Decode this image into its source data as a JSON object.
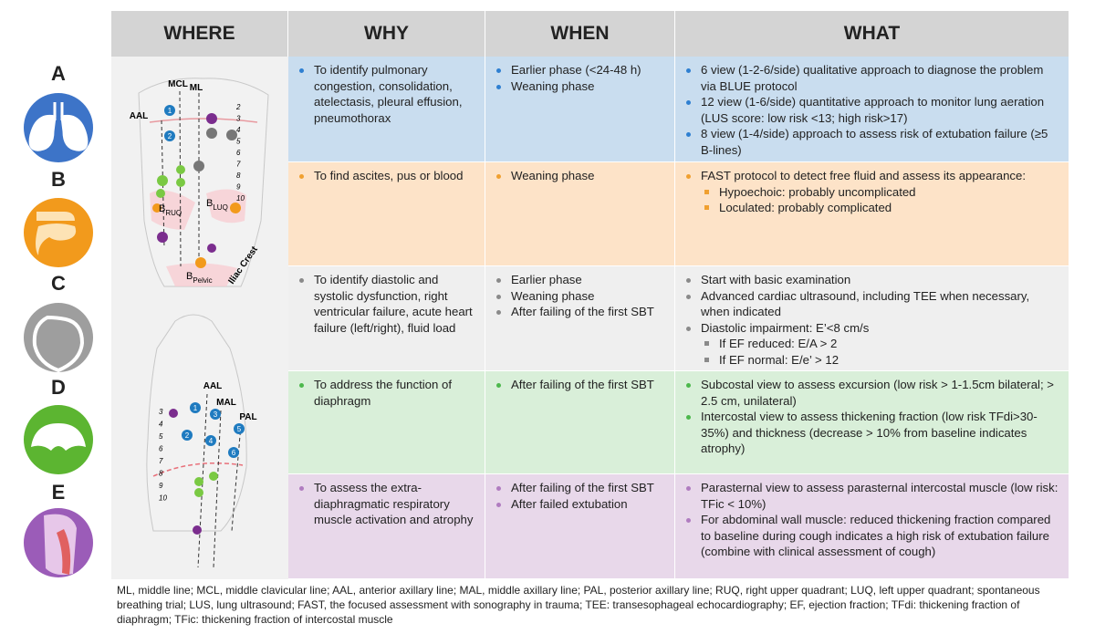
{
  "header": {
    "columns": [
      "WHERE",
      "WHY",
      "WHEN",
      "WHAT"
    ]
  },
  "side_labels": [
    "A",
    "B",
    "C",
    "D",
    "E"
  ],
  "rows": [
    {
      "why": [
        "To identify pulmonary congestion, consolidation, atelectasis, pleural effusion, pneumothorax"
      ],
      "when": [
        "Earlier phase (<24-48 h)",
        "Weaning phase"
      ],
      "what": [
        "6 view (1-2-6/side) qualitative approach to diagnose the problem via BLUE protocol",
        "12 view (1-6/side) quantitative approach to monitor lung aeration (LUS score: low risk <13; high risk>17)",
        "8 view (1-4/side) approach to assess risk of extubation failure (≥5 B-lines)"
      ]
    },
    {
      "why": [
        "To find ascites, pus or blood"
      ],
      "when": [
        "Weaning phase"
      ],
      "what": [
        {
          "text": "FAST protocol to detect free fluid and assess its appearance:",
          "sub": [
            "Hypoechoic: probably uncomplicated",
            "Loculated: probably complicated"
          ]
        }
      ]
    },
    {
      "why": [
        "To identify diastolic and systolic dysfunction, right ventricular failure, acute heart failure (left/right), fluid load"
      ],
      "when": [
        "Earlier phase",
        "Weaning phase",
        "After failing of the first SBT"
      ],
      "what": [
        "Start with basic examination",
        "Advanced cardiac ultrasound, including TEE when necessary, when indicated",
        {
          "text": "Diastolic impairment: E’<8 cm/s",
          "sub": [
            "If EF reduced: E/A > 2",
            "If EF normal: E/e’ > 12"
          ]
        }
      ]
    },
    {
      "why": [
        "To address the function of diaphragm"
      ],
      "when": [
        "After failing of the first SBT"
      ],
      "what": [
        "Subcostal view to assess excursion (low risk > 1-1.5cm bilateral; > 2.5 cm, unilateral)",
        "Intercostal view to assess thickening fraction (low risk TFdi>30-35%) and thickness (decrease > 10% from baseline indicates atrophy)"
      ]
    },
    {
      "why": [
        "To assess the extra-diaphragmatic respiratory muscle activation and atrophy"
      ],
      "when": [
        "After failing of the first SBT",
        "After failed extubation"
      ],
      "what": [
        "Parasternal view to assess parasternal intercostal muscle (low risk: TFic < 10%)",
        "For abdominal wall muscle: reduced thickening fraction compared to baseline during cough indicates a high risk of extubation failure (combine with clinical assessment of cough)"
      ]
    }
  ],
  "figure": {
    "front": {
      "lines": [
        "MCL",
        "ML",
        "AAL"
      ],
      "ribs": [
        2,
        3,
        4,
        5,
        6,
        7,
        8,
        9,
        10
      ],
      "points": [
        1,
        2
      ],
      "regions": [
        {
          "main": "B",
          "sub": "RUQ"
        },
        {
          "main": "B",
          "sub": "LUQ"
        },
        {
          "main": "B",
          "sub": "Pelvic"
        }
      ],
      "landmark": "Iliac Crest"
    },
    "lateral": {
      "lines": [
        "AAL",
        "MAL",
        "PAL"
      ],
      "ribs": [
        3,
        4,
        5,
        6,
        7,
        8,
        9,
        10
      ],
      "points": [
        1,
        2,
        3,
        4,
        5,
        6
      ]
    }
  },
  "footnote": "ML, middle line; MCL, middle clavicular line; AAL, anterior axillary line; MAL, middle axillary line; PAL, posterior axillary line; RUQ, right upper quadrant; LUQ, left upper quadrant; spontaneous breathing trial;  LUS, lung ultrasound; FAST, the focused assessment with sonography in trauma; TEE: transesophageal echocardiography; EF, ejection fraction; TFdi: thickening fraction of diaphragm; TFic: thickening fraction of intercostal muscle"
}
